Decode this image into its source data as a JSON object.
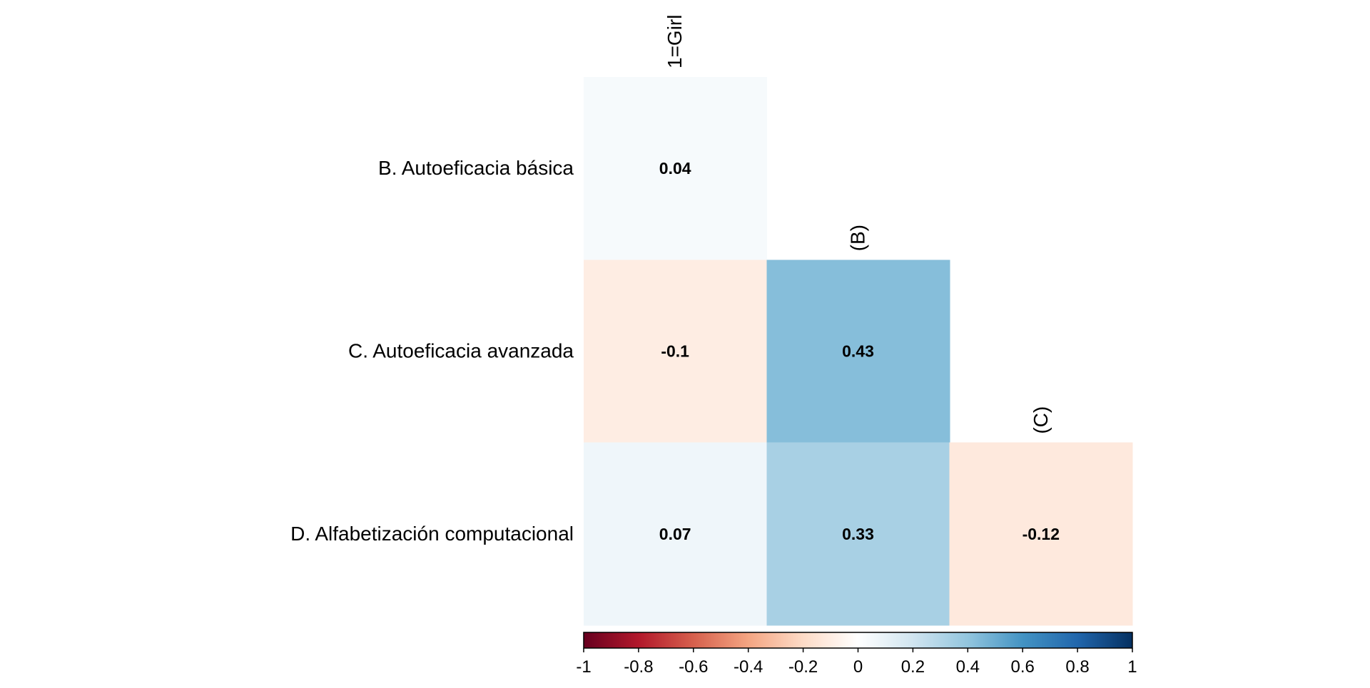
{
  "chart_data": {
    "type": "heatmap",
    "title": "",
    "row_labels": [
      "B. Autoeficacia básica",
      "C. Autoeficacia avanzada",
      "D. Alfabetización computacional"
    ],
    "column_labels": [
      "1=Girl",
      "(B)",
      "(C)"
    ],
    "cells": [
      {
        "row": 0,
        "col": 0,
        "value": 0.04,
        "label": "0.04"
      },
      {
        "row": 1,
        "col": 0,
        "value": -0.1,
        "label": "-0.1"
      },
      {
        "row": 1,
        "col": 1,
        "value": 0.43,
        "label": "0.43"
      },
      {
        "row": 2,
        "col": 0,
        "value": 0.07,
        "label": "0.07"
      },
      {
        "row": 2,
        "col": 1,
        "value": 0.33,
        "label": "0.33"
      },
      {
        "row": 2,
        "col": 2,
        "value": -0.12,
        "label": "-0.12"
      }
    ],
    "color_scale": {
      "range": [
        -1,
        1
      ],
      "ticks": [
        "-1",
        "-0.8",
        "-0.6",
        "-0.4",
        "-0.2",
        "0",
        "0.2",
        "0.4",
        "0.6",
        "0.8",
        "1"
      ],
      "colors": [
        "#67001f",
        "#b2182b",
        "#d6604d",
        "#f4a582",
        "#fddbc7",
        "#ffffff",
        "#d1e5f0",
        "#92c5de",
        "#4393c3",
        "#2166ac",
        "#053061"
      ]
    },
    "legend_position": "bottom"
  }
}
